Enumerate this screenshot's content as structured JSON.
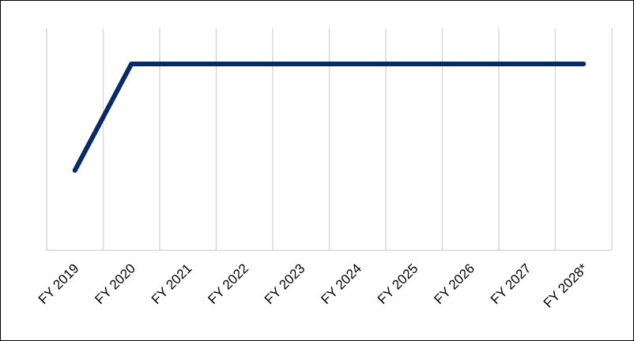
{
  "chart_data": {
    "type": "line",
    "categories": [
      "FY 2019",
      "FY 2020",
      "FY 2021",
      "FY 2022",
      "FY 2023",
      "FY 2024",
      "FY 2025",
      "FY 2026",
      "FY 2027",
      "FY 2028*"
    ],
    "series": [
      {
        "values": [
          0.36,
          0.84,
          0.84,
          0.84,
          0.84,
          0.84,
          0.84,
          0.84,
          0.84,
          0.84
        ]
      }
    ],
    "title": "",
    "xlabel": "",
    "ylabel": "",
    "ylim": [
      0,
      1
    ],
    "grid": "vertical",
    "legend": "none",
    "colors": {
      "line": "#0a2a66",
      "grid": "#d9d9d9",
      "axis": "#d9d9d9"
    }
  }
}
